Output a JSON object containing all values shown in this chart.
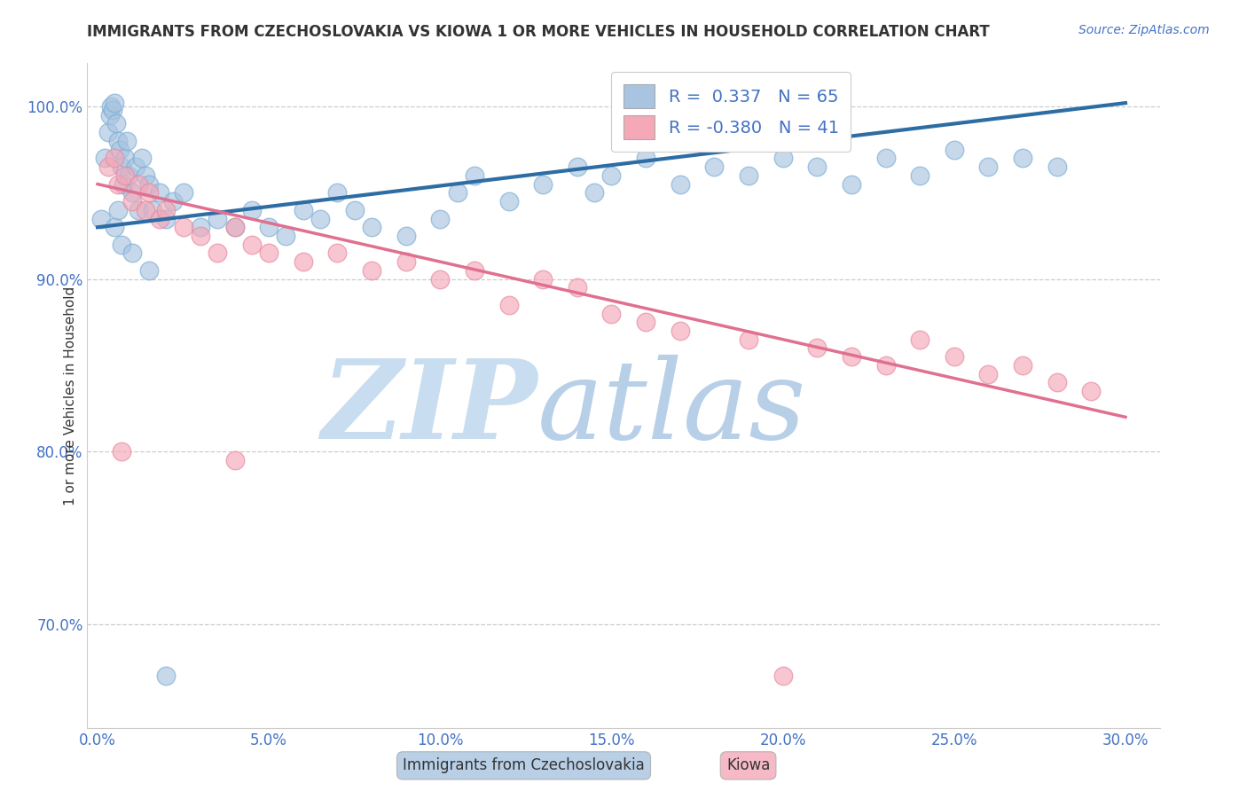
{
  "title": "IMMIGRANTS FROM CZECHOSLOVAKIA VS KIOWA 1 OR MORE VEHICLES IN HOUSEHOLD CORRELATION CHART",
  "source": "Source: ZipAtlas.com",
  "xlabel_blue": "Immigrants from Czechoslovakia",
  "xlabel_pink": "Kiowa",
  "ylabel": "1 or more Vehicles in Household",
  "R_blue": 0.337,
  "N_blue": 65,
  "R_pink": -0.38,
  "N_pink": 41,
  "blue_color": "#a8c4e0",
  "blue_edge_color": "#7aadd4",
  "blue_line_color": "#2e6da4",
  "pink_color": "#f4a8b8",
  "pink_edge_color": "#e888a0",
  "pink_line_color": "#e07090",
  "tick_color": "#4472c4",
  "watermark_zip_color": "#c8ddf0",
  "watermark_atlas_color": "#b8cfe8",
  "blue_scatter_x": [
    0.1,
    0.2,
    0.3,
    0.35,
    0.4,
    0.45,
    0.5,
    0.55,
    0.6,
    0.65,
    0.7,
    0.75,
    0.8,
    0.85,
    0.9,
    1.0,
    1.1,
    1.2,
    1.3,
    1.4,
    1.5,
    1.6,
    1.8,
    2.0,
    2.2,
    2.5,
    3.0,
    3.5,
    4.0,
    4.5,
    5.0,
    5.5,
    6.0,
    6.5,
    7.0,
    7.5,
    8.0,
    9.0,
    10.0,
    10.5,
    11.0,
    12.0,
    13.0,
    14.0,
    14.5,
    15.0,
    16.0,
    17.0,
    18.0,
    19.0,
    20.0,
    21.0,
    22.0,
    23.0,
    24.0,
    25.0,
    26.0,
    27.0,
    28.0,
    0.5,
    0.6,
    0.7,
    1.0,
    1.5,
    2.0
  ],
  "blue_scatter_y": [
    93.5,
    97.0,
    98.5,
    99.5,
    100.0,
    99.8,
    100.2,
    99.0,
    98.0,
    97.5,
    96.5,
    95.5,
    97.0,
    98.0,
    96.0,
    95.0,
    96.5,
    94.0,
    97.0,
    96.0,
    95.5,
    94.0,
    95.0,
    93.5,
    94.5,
    95.0,
    93.0,
    93.5,
    93.0,
    94.0,
    93.0,
    92.5,
    94.0,
    93.5,
    95.0,
    94.0,
    93.0,
    92.5,
    93.5,
    95.0,
    96.0,
    94.5,
    95.5,
    96.5,
    95.0,
    96.0,
    97.0,
    95.5,
    96.5,
    96.0,
    97.0,
    96.5,
    95.5,
    97.0,
    96.0,
    97.5,
    96.5,
    97.0,
    96.5,
    93.0,
    94.0,
    92.0,
    91.5,
    90.5,
    67.0
  ],
  "pink_scatter_x": [
    0.3,
    0.5,
    0.6,
    0.8,
    1.0,
    1.2,
    1.4,
    1.5,
    1.8,
    2.0,
    2.5,
    3.0,
    3.5,
    4.0,
    4.5,
    5.0,
    6.0,
    7.0,
    8.0,
    9.0,
    10.0,
    11.0,
    12.0,
    13.0,
    14.0,
    15.0,
    16.0,
    17.0,
    19.0,
    20.0,
    21.0,
    22.0,
    23.0,
    24.0,
    25.0,
    26.0,
    27.0,
    28.0,
    29.0,
    0.7,
    4.0
  ],
  "pink_scatter_y": [
    96.5,
    97.0,
    95.5,
    96.0,
    94.5,
    95.5,
    94.0,
    95.0,
    93.5,
    94.0,
    93.0,
    92.5,
    91.5,
    93.0,
    92.0,
    91.5,
    91.0,
    91.5,
    90.5,
    91.0,
    90.0,
    90.5,
    88.5,
    90.0,
    89.5,
    88.0,
    87.5,
    87.0,
    86.5,
    67.0,
    86.0,
    85.5,
    85.0,
    86.5,
    85.5,
    84.5,
    85.0,
    84.0,
    83.5,
    80.0,
    79.5
  ],
  "blue_line_x0": 0.0,
  "blue_line_x1": 30.0,
  "blue_line_y0": 93.0,
  "blue_line_y1": 100.2,
  "pink_line_x0": 0.0,
  "pink_line_x1": 30.0,
  "pink_line_y0": 95.5,
  "pink_line_y1": 82.0,
  "xlim_min": -0.3,
  "xlim_max": 31.0,
  "ylim_min": 64.0,
  "ylim_max": 102.5,
  "yticks": [
    70.0,
    80.0,
    90.0,
    100.0
  ],
  "xticks": [
    0.0,
    5.0,
    10.0,
    15.0,
    20.0,
    25.0,
    30.0
  ]
}
